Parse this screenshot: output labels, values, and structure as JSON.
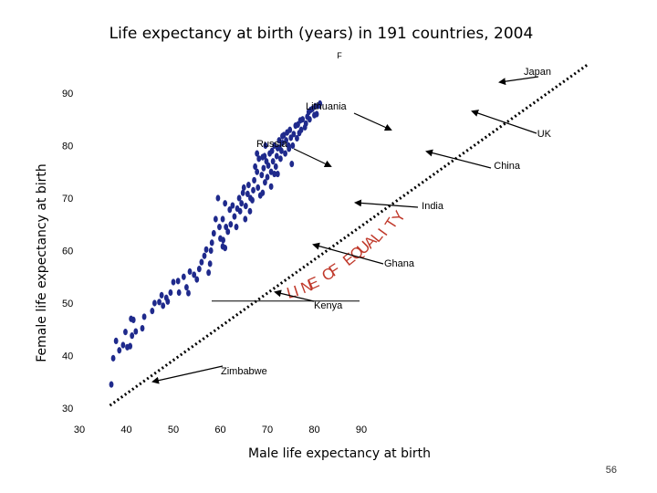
{
  "slide": {
    "page_number": "56"
  },
  "chart_data": {
    "type": "scatter",
    "title": "Life expectancy at birth (years) in 191 countries, 2004",
    "subtitle": "F",
    "xlabel": "Male life expectancy at birth",
    "ylabel": "Female life expectancy at birth",
    "xlim": [
      30,
      90
    ],
    "ylim": [
      30,
      90
    ],
    "x_ticks": [
      "30",
      "40",
      "50",
      "60",
      "70",
      "80",
      "90"
    ],
    "y_ticks": [
      "30",
      "40",
      "50",
      "60",
      "70",
      "80",
      "90"
    ],
    "equality_line_text": "LINE OF EQUALITY",
    "colors": {
      "points": "#1f2a8c",
      "equality_line": "#c0392b",
      "line": "#000000"
    },
    "annotations": [
      {
        "label": "Japan",
        "point": [
          78.5,
          85.5
        ]
      },
      {
        "label": "Lithuania",
        "point": [
          66,
          78
        ]
      },
      {
        "label": "UK",
        "point": [
          76.5,
          81
        ]
      },
      {
        "label": "Russia",
        "point": [
          59,
          72
        ]
      },
      {
        "label": "China",
        "point": [
          70.5,
          74
        ]
      },
      {
        "label": "India",
        "point": [
          62.2,
          63.8
        ]
      },
      {
        "label": "Ghana",
        "point": [
          55.8,
          58.8
        ]
      },
      {
        "label": "Kenya",
        "point": [
          49.2,
          51
        ]
      },
      {
        "label": "Zimbabwe",
        "point": [
          37.5,
          37.6
        ]
      }
    ],
    "points": [
      [
        36.8,
        34.5
      ],
      [
        37.2,
        39.5
      ],
      [
        37.8,
        42.8
      ],
      [
        38.5,
        41.0
      ],
      [
        39.3,
        42.0
      ],
      [
        39.8,
        44.5
      ],
      [
        40.2,
        41.6
      ],
      [
        40.8,
        41.8
      ],
      [
        41.0,
        47.0
      ],
      [
        41.5,
        46.8
      ],
      [
        41.2,
        43.8
      ],
      [
        42.0,
        44.6
      ],
      [
        43.4,
        45.2
      ],
      [
        43.8,
        47.4
      ],
      [
        45.5,
        48.5
      ],
      [
        46.0,
        50.0
      ],
      [
        47.0,
        50.2
      ],
      [
        47.5,
        51.5
      ],
      [
        47.8,
        49.5
      ],
      [
        48.5,
        51.0
      ],
      [
        48.8,
        50.3
      ],
      [
        49.4,
        52.0
      ],
      [
        50.0,
        54.0
      ],
      [
        51.0,
        54.2
      ],
      [
        51.2,
        52.0
      ],
      [
        52.8,
        53.0
      ],
      [
        53.2,
        51.9
      ],
      [
        52.2,
        55.0
      ],
      [
        53.5,
        56.0
      ],
      [
        54.4,
        55.4
      ],
      [
        55.0,
        54.5
      ],
      [
        55.5,
        56.5
      ],
      [
        56.0,
        57.8
      ],
      [
        56.6,
        59.0
      ],
      [
        57.0,
        60.2
      ],
      [
        57.5,
        55.8
      ],
      [
        57.8,
        57.5
      ],
      [
        58.0,
        60.0
      ],
      [
        58.2,
        61.5
      ],
      [
        58.6,
        63.3
      ],
      [
        59.0,
        66.0
      ],
      [
        59.5,
        70.0
      ],
      [
        59.8,
        64.5
      ],
      [
        60.0,
        62.3
      ],
      [
        60.5,
        60.8
      ],
      [
        60.5,
        66.0
      ],
      [
        60.6,
        62.0
      ],
      [
        61.0,
        60.5
      ],
      [
        61.0,
        69.0
      ],
      [
        61.2,
        64.5
      ],
      [
        61.6,
        63.6
      ],
      [
        62.0,
        67.8
      ],
      [
        62.2,
        65.0
      ],
      [
        62.6,
        68.6
      ],
      [
        63.0,
        66.5
      ],
      [
        63.4,
        64.5
      ],
      [
        63.6,
        68.0
      ],
      [
        64.0,
        70.0
      ],
      [
        64.2,
        67.5
      ],
      [
        64.5,
        69.0
      ],
      [
        64.8,
        71.0
      ],
      [
        65.0,
        72.0
      ],
      [
        65.3,
        66.0
      ],
      [
        65.4,
        68.5
      ],
      [
        65.8,
        70.8
      ],
      [
        66.0,
        72.5
      ],
      [
        66.3,
        67.5
      ],
      [
        66.4,
        70.0
      ],
      [
        66.8,
        69.6
      ],
      [
        67.0,
        71.5
      ],
      [
        67.2,
        73.4
      ],
      [
        67.4,
        76.0
      ],
      [
        67.8,
        75.0
      ],
      [
        68.2,
        77.5
      ],
      [
        68.0,
        72.0
      ],
      [
        68.5,
        70.5
      ],
      [
        68.8,
        74.4
      ],
      [
        69.0,
        71.0
      ],
      [
        69.2,
        75.7
      ],
      [
        69.5,
        73.0
      ],
      [
        69.8,
        77.0
      ],
      [
        69.4,
        78.0
      ],
      [
        70.0,
        74.0
      ],
      [
        70.2,
        76.2
      ],
      [
        70.5,
        78.5
      ],
      [
        70.8,
        75.0
      ],
      [
        71.0,
        79.0
      ],
      [
        71.2,
        77.0
      ],
      [
        71.5,
        80.0
      ],
      [
        71.8,
        76.0
      ],
      [
        72.0,
        78.0
      ],
      [
        72.2,
        79.5
      ],
      [
        72.5,
        81.0
      ],
      [
        72.8,
        77.5
      ],
      [
        73.0,
        79.0
      ],
      [
        73.2,
        80.5
      ],
      [
        73.5,
        82.0
      ],
      [
        73.8,
        78.5
      ],
      [
        74.0,
        81.0
      ],
      [
        74.2,
        82.5
      ],
      [
        74.5,
        80.0
      ],
      [
        74.8,
        83.0
      ],
      [
        75.0,
        81.5
      ],
      [
        75.2,
        76.5
      ],
      [
        75.4,
        80.0
      ],
      [
        75.6,
        82.2
      ],
      [
        76.0,
        83.8
      ],
      [
        76.3,
        81.4
      ],
      [
        76.5,
        84.0
      ],
      [
        76.8,
        82.4
      ],
      [
        77.0,
        84.8
      ],
      [
        77.2,
        83.0
      ],
      [
        77.5,
        85.0
      ],
      [
        78.0,
        83.5
      ],
      [
        78.2,
        84.2
      ],
      [
        78.5,
        85.5
      ],
      [
        78.8,
        86.4
      ],
      [
        79.0,
        85.0
      ],
      [
        79.2,
        86.8
      ],
      [
        79.6,
        87.0
      ],
      [
        80.0,
        85.8
      ],
      [
        80.2,
        87.5
      ],
      [
        80.5,
        86.0
      ],
      [
        81.0,
        87.6
      ],
      [
        81.2,
        88.0
      ],
      [
        72.6,
        79.6
      ],
      [
        72.2,
        74.6
      ],
      [
        73.2,
        81.8
      ],
      [
        70.8,
        72.2
      ],
      [
        71.5,
        74.6
      ],
      [
        67.8,
        78.5
      ],
      [
        69.0,
        77.8
      ],
      [
        74.6,
        79.4
      ],
      [
        69.6,
        80.0
      ]
    ]
  }
}
